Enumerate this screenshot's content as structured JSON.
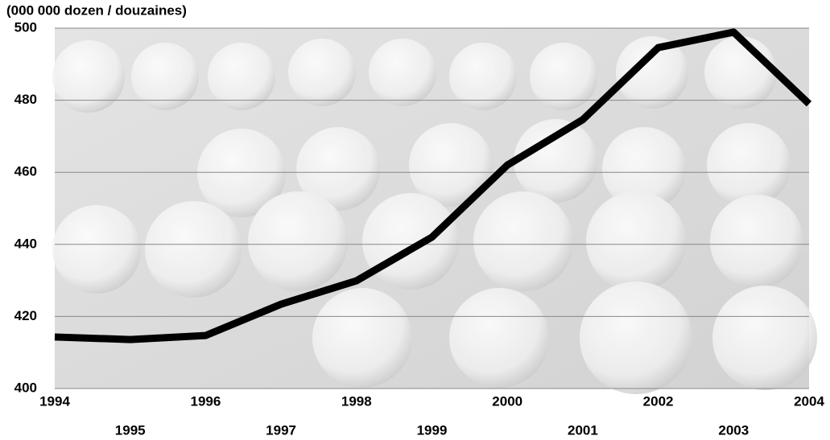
{
  "chart_data": {
    "type": "line",
    "title": "(000 000 dozen / douzaines)",
    "x": [
      1994,
      1995,
      1996,
      1997,
      1998,
      1999,
      2000,
      2001,
      2002,
      2003,
      2004
    ],
    "series": [
      {
        "color": "#000000",
        "values": [
          414.3,
          413.6,
          414.7,
          423.4,
          429.9,
          442,
          462,
          474.6,
          494.6,
          498.9,
          479
        ]
      }
    ],
    "xlim": [
      1994,
      2004
    ],
    "xticks": [
      1994,
      1995,
      1996,
      1997,
      1998,
      1999,
      2000,
      2001,
      2002,
      2003,
      2004
    ],
    "ylim": [
      400,
      500
    ],
    "yticks": [
      400,
      420,
      440,
      460,
      480,
      500
    ],
    "grid": true
  }
}
